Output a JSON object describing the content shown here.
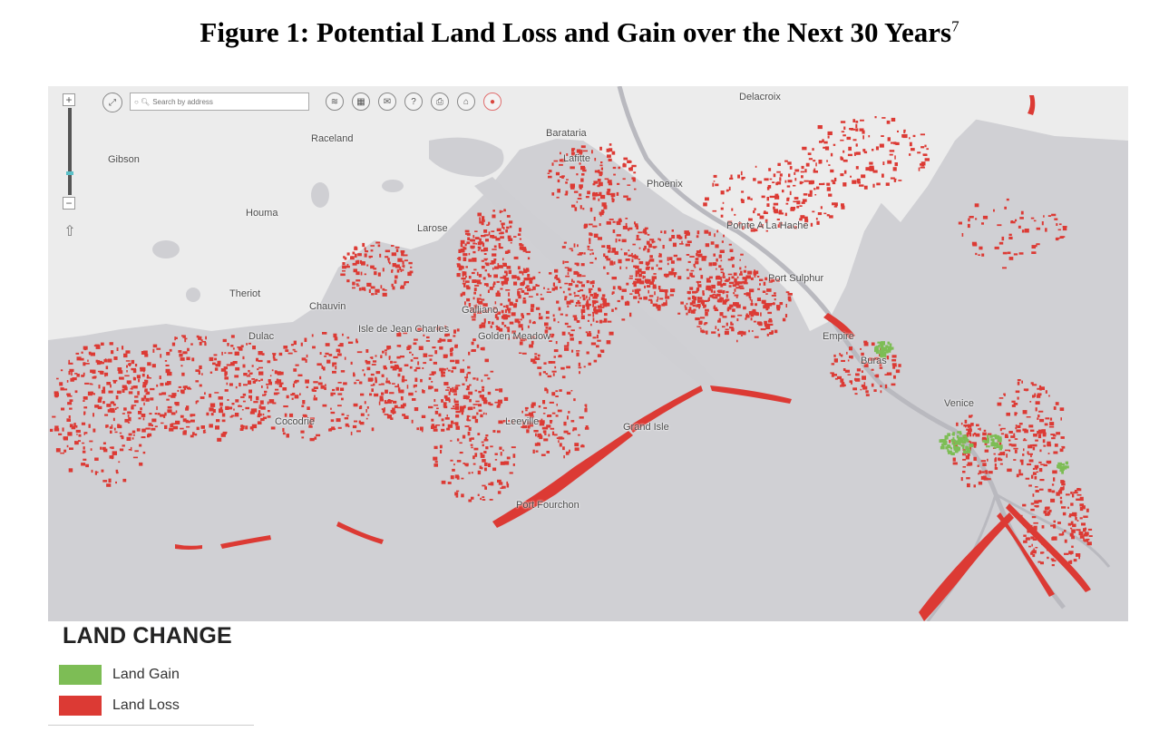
{
  "figure": {
    "title": "Figure 1: Potential Land Loss and Gain over the Next 30 Years",
    "footnote": "7"
  },
  "map": {
    "search_placeholder": "Search by address",
    "places": [
      {
        "name": "Delacroix",
        "id": "delacroix"
      },
      {
        "name": "Raceland",
        "id": "raceland"
      },
      {
        "name": "Barataria",
        "id": "barataria"
      },
      {
        "name": "Lafitte",
        "id": "lafitte"
      },
      {
        "name": "Gibson",
        "id": "gibson"
      },
      {
        "name": "Phoenix",
        "id": "phoenix"
      },
      {
        "name": "Houma",
        "id": "houma"
      },
      {
        "name": "Larose",
        "id": "larose"
      },
      {
        "name": "Pointe A La Hache",
        "id": "pointe-a-la-hache"
      },
      {
        "name": "Port Sulphur",
        "id": "port-sulphur"
      },
      {
        "name": "Theriot",
        "id": "theriot"
      },
      {
        "name": "Chauvin",
        "id": "chauvin"
      },
      {
        "name": "Galliano",
        "id": "galliano"
      },
      {
        "name": "Isle de Jean Charles",
        "id": "isle-de-jean-charles"
      },
      {
        "name": "Golden Meadow",
        "id": "golden-meadow"
      },
      {
        "name": "Dulac",
        "id": "dulac"
      },
      {
        "name": "Empire",
        "id": "empire"
      },
      {
        "name": "Buras",
        "id": "buras"
      },
      {
        "name": "Venice",
        "id": "venice"
      },
      {
        "name": "Cocodrie",
        "id": "cocodrie"
      },
      {
        "name": "Leeville",
        "id": "leeville"
      },
      {
        "name": "Grand Isle",
        "id": "grand-isle"
      },
      {
        "name": "Port Fourchon",
        "id": "port-fourchon"
      }
    ],
    "toolbar_icons": [
      "layers-icon",
      "grid-icon",
      "mail-icon",
      "help-icon",
      "print-icon",
      "home-icon",
      "location-pin-icon"
    ]
  },
  "legend": {
    "title": "LAND CHANGE",
    "items": [
      {
        "label": "Land Gain",
        "color": "#7dbd55"
      },
      {
        "label": "Land Loss",
        "color": "#dc3a34"
      }
    ]
  },
  "colors": {
    "water": "#d0d0d4",
    "land": "#ececec",
    "loss": "#dc3a34",
    "gain": "#7dbd55"
  }
}
